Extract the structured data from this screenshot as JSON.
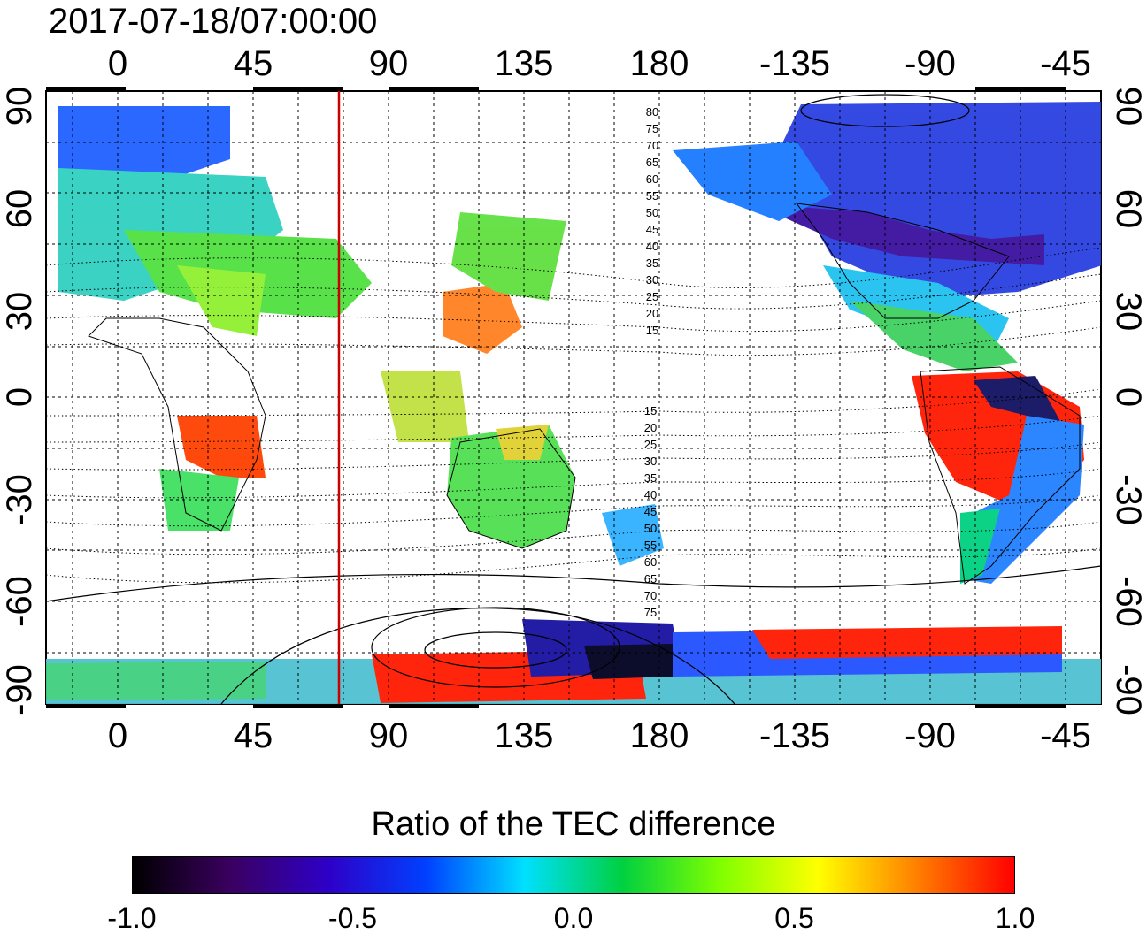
{
  "title": "2017-07-18/07:00:00",
  "map": {
    "top_lon_ticks": [
      "0",
      "45",
      "90",
      "135",
      "180",
      "-135",
      "-90",
      "-45"
    ],
    "bottom_lon_ticks": [
      "0",
      "45",
      "90",
      "135",
      "180",
      "-135",
      "-90",
      "-45"
    ],
    "left_lat_ticks": [
      "90",
      "60",
      "30",
      "0",
      "-30",
      "-60",
      "-90"
    ],
    "right_lat_ticks": [
      "90",
      "60",
      "30",
      "0",
      "-30",
      "-60",
      "-90"
    ],
    "marker_line_longitude": 75,
    "marker_line_color": "#cc0000",
    "north_contour_labels": [
      "80",
      "75",
      "70",
      "65",
      "60",
      "55",
      "50",
      "45",
      "40",
      "35",
      "30",
      "25",
      "20",
      "15"
    ],
    "south_contour_labels": [
      "15",
      "20",
      "25",
      "30",
      "35",
      "40",
      "45",
      "50",
      "55",
      "60",
      "65",
      "70",
      "75"
    ]
  },
  "colorbar": {
    "title": "Ratio of the TEC difference",
    "ticks": [
      "-1.0",
      "-0.5",
      "0.0",
      "0.5",
      "1.0"
    ],
    "min": -1.0,
    "max": 1.0,
    "stops": [
      "#000000",
      "#3a0060",
      "#2e00c8",
      "#0040ff",
      "#00e0ff",
      "#00d040",
      "#80ff00",
      "#ffff00",
      "#ff8000",
      "#ff0000"
    ]
  }
}
